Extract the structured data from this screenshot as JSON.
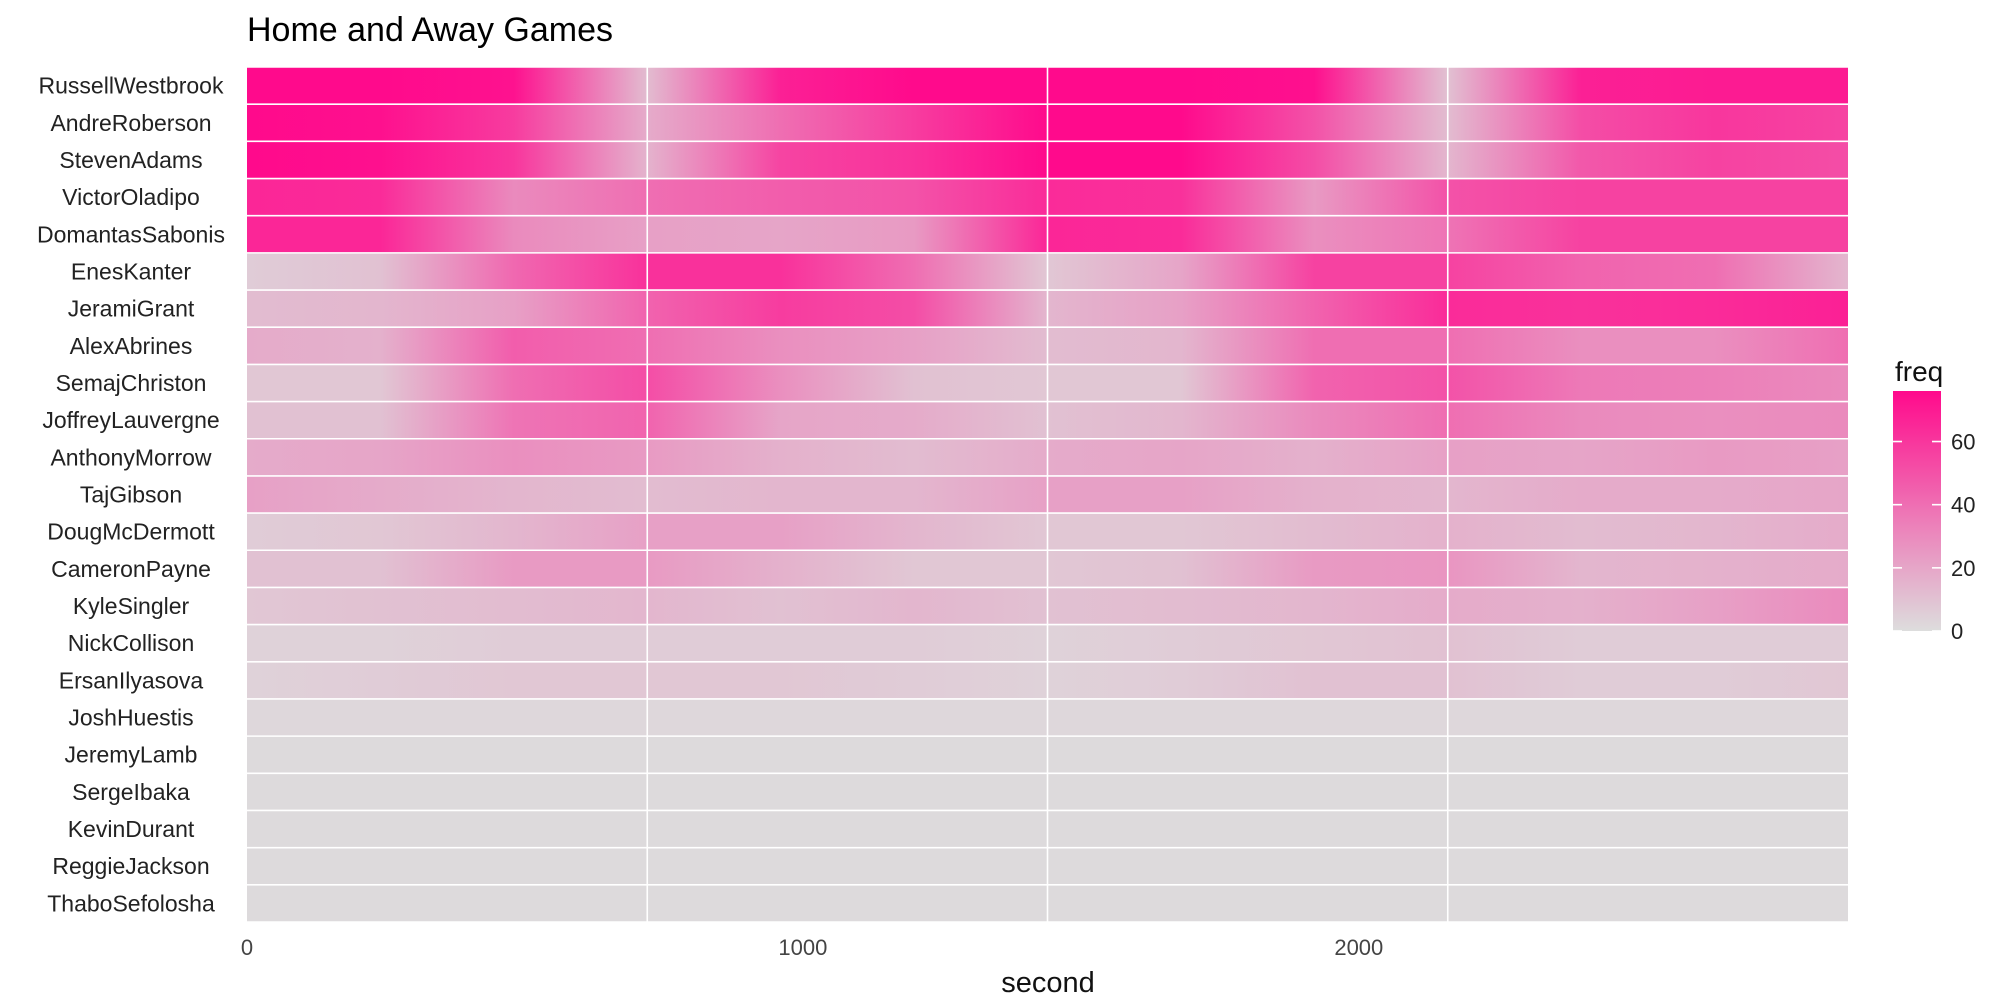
{
  "chart_data": {
    "type": "heatmap",
    "title": "Home and Away Games",
    "xlabel": "second",
    "ylabel": "",
    "xlim": [
      0,
      2880
    ],
    "x_ticks": [
      0,
      1000,
      2000
    ],
    "x_tick_labels": [
      "0",
      "1000",
      "2000"
    ],
    "grid": true,
    "x_minor_breaks": [
      720,
      1440,
      2160
    ],
    "players": [
      "RussellWestbrook",
      "AndreRoberson",
      "StevenAdams",
      "VictorOladipo",
      "DomantasSabonis",
      "EnesKanter",
      "JeramiGrant",
      "AlexAbrines",
      "SemajChriston",
      "JoffreyLauvergne",
      "AnthonyMorrow",
      "TajGibson",
      "DougMcDermott",
      "CameronPayne",
      "KyleSingler",
      "NickCollison",
      "ErsanIlyasova",
      "JoshHuestis",
      "JeremyLamb",
      "SergeIbaka",
      "KevinDurant",
      "ReggieJackson",
      "ThaboSefolosha"
    ],
    "series_note_x_seconds": [
      0,
      240,
      480,
      720,
      960,
      1200,
      1440,
      1680,
      1920,
      2160,
      2400,
      2640,
      2880
    ],
    "series": [
      {
        "player": "RussellWestbrook",
        "values": [
          76,
          76,
          73,
          12,
          68,
          76,
          76,
          76,
          74,
          10,
          68,
          70,
          70
        ]
      },
      {
        "player": "AndreRoberson",
        "values": [
          76,
          74,
          58,
          18,
          40,
          58,
          76,
          76,
          50,
          12,
          52,
          60,
          55
        ]
      },
      {
        "player": "StevenAdams",
        "values": [
          76,
          74,
          60,
          15,
          55,
          62,
          76,
          76,
          52,
          14,
          48,
          56,
          52
        ]
      },
      {
        "player": "VictorOladipo",
        "values": [
          66,
          64,
          30,
          40,
          46,
          50,
          64,
          62,
          24,
          50,
          56,
          56,
          56
        ]
      },
      {
        "player": "DomantasSabonis",
        "values": [
          66,
          66,
          30,
          22,
          20,
          24,
          66,
          64,
          28,
          38,
          56,
          56,
          56
        ]
      },
      {
        "player": "EnesKanter",
        "values": [
          6,
          10,
          42,
          62,
          62,
          40,
          8,
          20,
          56,
          56,
          44,
          40,
          14
        ]
      },
      {
        "player": "JeramiGrant",
        "values": [
          12,
          14,
          22,
          44,
          58,
          52,
          14,
          22,
          44,
          64,
          62,
          64,
          68
        ]
      },
      {
        "player": "AlexAbrines",
        "values": [
          18,
          16,
          46,
          40,
          28,
          22,
          12,
          14,
          40,
          40,
          28,
          28,
          40
        ]
      },
      {
        "player": "SemajChriston",
        "values": [
          8,
          8,
          40,
          52,
          28,
          10,
          8,
          8,
          44,
          50,
          36,
          34,
          30
        ]
      },
      {
        "player": "JoffreyLauvergne",
        "values": [
          10,
          10,
          38,
          44,
          20,
          18,
          10,
          14,
          30,
          40,
          30,
          28,
          30
        ]
      },
      {
        "player": "AnthonyMorrow",
        "values": [
          18,
          20,
          28,
          24,
          16,
          12,
          18,
          20,
          16,
          22,
          20,
          24,
          22
        ]
      },
      {
        "player": "TajGibson",
        "values": [
          22,
          18,
          14,
          12,
          14,
          14,
          22,
          22,
          16,
          14,
          18,
          18,
          20
        ]
      },
      {
        "player": "DougMcDermott",
        "values": [
          6,
          8,
          14,
          22,
          22,
          14,
          8,
          8,
          12,
          16,
          12,
          14,
          18
        ]
      },
      {
        "player": "CameronPayne",
        "values": [
          10,
          10,
          24,
          24,
          16,
          8,
          8,
          10,
          24,
          26,
          14,
          16,
          18
        ]
      },
      {
        "player": "KyleSingler",
        "values": [
          8,
          10,
          12,
          14,
          10,
          14,
          10,
          12,
          14,
          18,
          16,
          22,
          30
        ]
      },
      {
        "player": "NickCollison",
        "values": [
          4,
          4,
          6,
          6,
          6,
          6,
          4,
          6,
          8,
          10,
          6,
          6,
          6
        ]
      },
      {
        "player": "ErsanIlyasova",
        "values": [
          4,
          6,
          8,
          8,
          8,
          6,
          4,
          6,
          10,
          10,
          6,
          6,
          8
        ]
      },
      {
        "player": "JoshHuestis",
        "values": [
          2,
          2,
          2,
          2,
          2,
          2,
          2,
          2,
          2,
          2,
          2,
          2,
          2
        ]
      },
      {
        "player": "JeremyLamb",
        "values": [
          1,
          1,
          1,
          1,
          1,
          1,
          1,
          1,
          1,
          1,
          1,
          1,
          1
        ]
      },
      {
        "player": "SergeIbaka",
        "values": [
          1,
          1,
          1,
          1,
          1,
          1,
          1,
          1,
          1,
          1,
          1,
          1,
          1
        ]
      },
      {
        "player": "KevinDurant",
        "values": [
          1,
          1,
          1,
          1,
          1,
          1,
          1,
          1,
          1,
          1,
          1,
          1,
          1
        ]
      },
      {
        "player": "ReggieJackson",
        "values": [
          1,
          1,
          1,
          1,
          1,
          1,
          1,
          1,
          1,
          1,
          1,
          1,
          1
        ]
      },
      {
        "player": "ThaboSefolosha",
        "values": [
          1,
          1,
          1,
          1,
          1,
          1,
          1,
          1,
          1,
          1,
          1,
          1,
          1
        ]
      }
    ],
    "color_scale": {
      "low": "#DDDDDD",
      "high": "#FF0A8C",
      "limits": [
        0,
        76
      ],
      "breaks": [
        0,
        20,
        40,
        60
      ],
      "break_labels": [
        "0",
        "20",
        "40",
        "60"
      ]
    },
    "legend": {
      "title": "freq",
      "position": "right"
    }
  }
}
